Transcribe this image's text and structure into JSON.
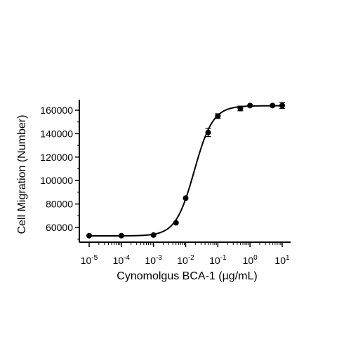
{
  "chart_data": {
    "type": "scatter",
    "title": "",
    "xlabel": "Cynomolgus BCA-1 (µg/mL)",
    "ylabel": "Cell Migration (Number)",
    "x_scale": "log10",
    "xlim": [
      1e-05,
      10
    ],
    "ylim": [
      50000,
      170000
    ],
    "x_ticks": [
      {
        "value": 1e-05,
        "base": "10",
        "exp": "-5"
      },
      {
        "value": 0.0001,
        "base": "10",
        "exp": "-4"
      },
      {
        "value": 0.001,
        "base": "10",
        "exp": "-3"
      },
      {
        "value": 0.01,
        "base": "10",
        "exp": "-2"
      },
      {
        "value": 0.1,
        "base": "10",
        "exp": "-1"
      },
      {
        "value": 1,
        "base": "10",
        "exp": "0"
      },
      {
        "value": 10,
        "base": "10",
        "exp": "1"
      }
    ],
    "y_ticks": [
      {
        "value": 60000,
        "label": "60000"
      },
      {
        "value": 80000,
        "label": "80000"
      },
      {
        "value": 100000,
        "label": "100000"
      },
      {
        "value": 120000,
        "label": "120000"
      },
      {
        "value": 140000,
        "label": "140000"
      },
      {
        "value": 160000,
        "label": "160000"
      }
    ],
    "series": [
      {
        "points": [
          {
            "x": 1e-05,
            "y": 53000,
            "err": 0
          },
          {
            "x": 0.0001,
            "y": 53000,
            "err": 0
          },
          {
            "x": 0.001,
            "y": 53500,
            "err": 0
          },
          {
            "x": 0.005,
            "y": 64000,
            "err": 0
          },
          {
            "x": 0.01,
            "y": 85000,
            "err": 0
          },
          {
            "x": 0.05,
            "y": 141000,
            "err": 3500
          },
          {
            "x": 0.1,
            "y": 155000,
            "err": 2000
          },
          {
            "x": 0.5,
            "y": 161500,
            "err": 2000
          },
          {
            "x": 1,
            "y": 164000,
            "err": 0
          },
          {
            "x": 5,
            "y": 164000,
            "err": 0
          },
          {
            "x": 10,
            "y": 164000,
            "err": 2500
          }
        ],
        "fit": {
          "bottom": 52800,
          "top": 163800,
          "ec50": 0.0185,
          "hill": 1.5
        }
      }
    ],
    "grid": false,
    "legend": "none"
  }
}
